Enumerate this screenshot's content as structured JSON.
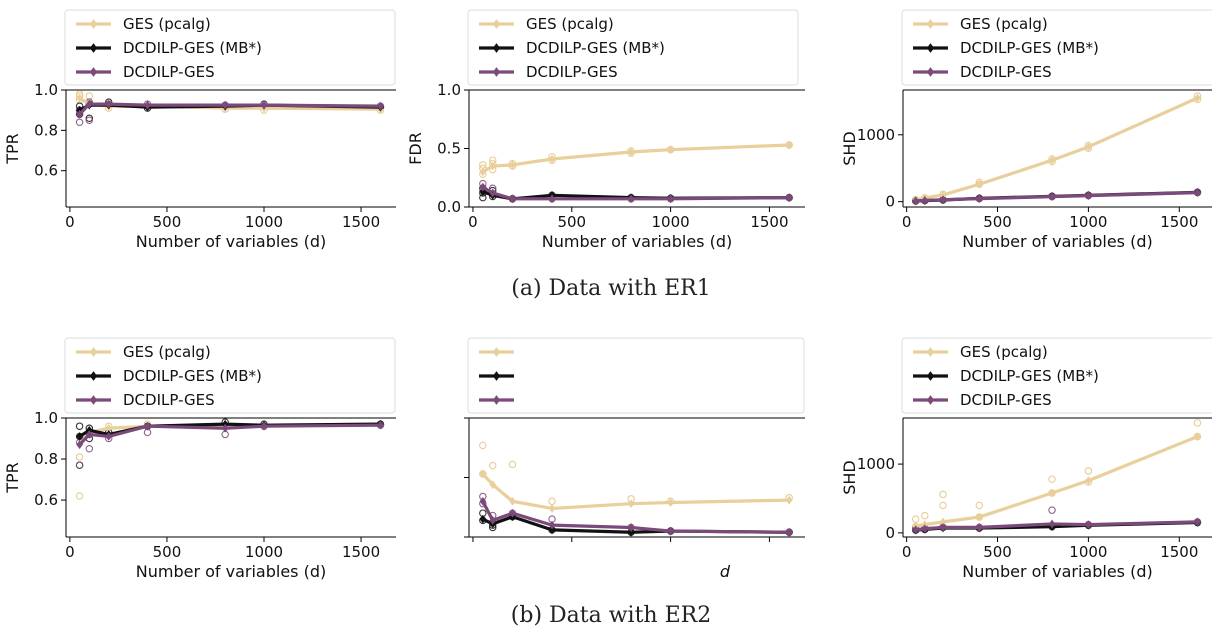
{
  "figure": {
    "colors": {
      "GES (pcalg)": "#e8cf9b",
      "DCDILP-GES (MB*)": "#111111",
      "DCDILP-GES": "#7b4a7a"
    },
    "rows": [
      {
        "caption": "(a) Data with ER1"
      },
      {
        "caption": "(b) Data with ER2"
      }
    ]
  },
  "chart_data": [
    {
      "type": "line",
      "id": "er1-tpr",
      "xlabel": "Number of variables (d)",
      "ylabel": "TPR",
      "xlim": [
        -20,
        1680
      ],
      "ylim": [
        0.42,
        1.0
      ],
      "xticks": [
        0,
        500,
        1000,
        1500
      ],
      "yticks": [
        0.6,
        0.8,
        1.0
      ],
      "x": [
        50,
        100,
        200,
        400,
        800,
        1000,
        1600
      ],
      "series": [
        {
          "name": "GES (pcalg)",
          "values": [
            0.96,
            0.93,
            0.92,
            0.92,
            0.91,
            0.91,
            0.905
          ],
          "scatter": [
            [
              50,
              0.98
            ],
            [
              50,
              0.97
            ],
            [
              50,
              0.95
            ],
            [
              100,
              0.97
            ],
            [
              100,
              0.94
            ],
            [
              200,
              0.93
            ],
            [
              200,
              0.91
            ],
            [
              400,
              0.92
            ],
            [
              800,
              0.905
            ],
            [
              1000,
              0.9
            ],
            [
              1600,
              0.9
            ]
          ]
        },
        {
          "name": "DCDILP-GES (MB*)",
          "values": [
            0.9,
            0.925,
            0.925,
            0.915,
            0.92,
            0.925,
            0.915
          ],
          "scatter": [
            [
              50,
              0.92
            ],
            [
              50,
              0.9
            ],
            [
              50,
              0.88
            ],
            [
              100,
              0.93
            ],
            [
              100,
              0.86
            ],
            [
              200,
              0.94
            ],
            [
              400,
              0.91
            ],
            [
              800,
              0.92
            ],
            [
              1000,
              0.93
            ],
            [
              1600,
              0.915
            ]
          ]
        },
        {
          "name": "DCDILP-GES",
          "values": [
            0.88,
            0.93,
            0.93,
            0.925,
            0.925,
            0.925,
            0.92
          ],
          "scatter": [
            [
              50,
              0.9
            ],
            [
              50,
              0.84
            ],
            [
              100,
              0.94
            ],
            [
              100,
              0.85
            ],
            [
              200,
              0.93
            ],
            [
              400,
              0.93
            ],
            [
              800,
              0.925
            ],
            [
              1000,
              0.93
            ],
            [
              1600,
              0.92
            ]
          ]
        }
      ],
      "legend": [
        "GES (pcalg)",
        "DCDILP-GES (MB*)",
        "DCDILP-GES"
      ]
    },
    {
      "type": "line",
      "id": "er1-fdr",
      "xlabel": "Number of variables (d)",
      "ylabel": "FDR",
      "xlim": [
        -20,
        1680
      ],
      "ylim": [
        0.0,
        1.0
      ],
      "xticks": [
        0,
        500,
        1000,
        1500
      ],
      "yticks": [
        0.0,
        0.5,
        1.0
      ],
      "x": [
        50,
        100,
        200,
        400,
        800,
        1000,
        1600
      ],
      "series": [
        {
          "name": "GES (pcalg)",
          "values": [
            0.3,
            0.35,
            0.36,
            0.41,
            0.47,
            0.49,
            0.53
          ],
          "scatter": [
            [
              50,
              0.36
            ],
            [
              50,
              0.33
            ],
            [
              50,
              0.28
            ],
            [
              100,
              0.4
            ],
            [
              100,
              0.37
            ],
            [
              100,
              0.32
            ],
            [
              200,
              0.37
            ],
            [
              200,
              0.35
            ],
            [
              400,
              0.43
            ],
            [
              400,
              0.4
            ],
            [
              800,
              0.48
            ],
            [
              800,
              0.46
            ],
            [
              1000,
              0.49
            ],
            [
              1600,
              0.53
            ]
          ]
        },
        {
          "name": "DCDILP-GES (MB*)",
          "values": [
            0.13,
            0.1,
            0.07,
            0.1,
            0.08,
            0.075,
            0.08
          ],
          "scatter": [
            [
              50,
              0.16
            ],
            [
              50,
              0.12
            ],
            [
              50,
              0.08
            ],
            [
              100,
              0.14
            ],
            [
              100,
              0.09
            ],
            [
              200,
              0.07
            ],
            [
              400,
              0.1
            ],
            [
              800,
              0.08
            ],
            [
              1000,
              0.075
            ],
            [
              1600,
              0.08
            ]
          ]
        },
        {
          "name": "DCDILP-GES",
          "values": [
            0.17,
            0.12,
            0.07,
            0.07,
            0.07,
            0.07,
            0.08
          ],
          "scatter": [
            [
              50,
              0.2
            ],
            [
              50,
              0.14
            ],
            [
              100,
              0.16
            ],
            [
              100,
              0.11
            ],
            [
              200,
              0.07
            ],
            [
              400,
              0.07
            ],
            [
              800,
              0.07
            ],
            [
              1000,
              0.07
            ],
            [
              1600,
              0.08
            ]
          ]
        }
      ],
      "legend": [
        "GES (pcalg)",
        "DCDILP-GES (MB*)",
        "DCDILP-GES"
      ]
    },
    {
      "type": "line",
      "id": "er1-shd",
      "xlabel": "Number of variables (d)",
      "ylabel": "SHD",
      "xlim": [
        -20,
        1680
      ],
      "ylim": [
        -80,
        1670
      ],
      "xticks": [
        0,
        500,
        1000,
        1500
      ],
      "yticks": [
        0,
        1000
      ],
      "x": [
        50,
        100,
        200,
        400,
        800,
        1000,
        1600
      ],
      "series": [
        {
          "name": "GES (pcalg)",
          "values": [
            30,
            55,
            100,
            260,
            620,
            820,
            1550
          ],
          "scatter": [
            [
              50,
              30
            ],
            [
              100,
              55
            ],
            [
              200,
              110
            ],
            [
              400,
              260
            ],
            [
              400,
              290
            ],
            [
              800,
              600
            ],
            [
              800,
              640
            ],
            [
              1000,
              800
            ],
            [
              1000,
              840
            ],
            [
              1600,
              1530
            ],
            [
              1600,
              1580
            ]
          ]
        },
        {
          "name": "DCDILP-GES (MB*)",
          "values": [
            10,
            15,
            25,
            50,
            80,
            95,
            140
          ],
          "scatter": [
            [
              50,
              10
            ],
            [
              100,
              15
            ],
            [
              200,
              25
            ],
            [
              400,
              50
            ],
            [
              800,
              80
            ],
            [
              1000,
              95
            ],
            [
              1600,
              140
            ]
          ]
        },
        {
          "name": "DCDILP-GES",
          "values": [
            10,
            18,
            28,
            45,
            75,
            90,
            135
          ],
          "scatter": [
            [
              50,
              12
            ],
            [
              100,
              18
            ],
            [
              200,
              28
            ],
            [
              400,
              45
            ],
            [
              800,
              75
            ],
            [
              1000,
              90
            ],
            [
              1600,
              135
            ]
          ]
        }
      ],
      "legend": [
        "GES (pcalg)",
        "DCDILP-GES (MB*)",
        "DCDILP-GES"
      ]
    },
    {
      "type": "line",
      "id": "er2-tpr",
      "xlabel": "Number of variables (d)",
      "ylabel": "TPR",
      "xlim": [
        -20,
        1680
      ],
      "ylim": [
        0.42,
        1.0
      ],
      "xticks": [
        0,
        500,
        1000,
        1500
      ],
      "yticks": [
        0.6,
        0.8,
        1.0
      ],
      "x": [
        50,
        100,
        200,
        400,
        800,
        1000,
        1600
      ],
      "series": [
        {
          "name": "GES (pcalg)",
          "values": [
            0.87,
            0.93,
            0.95,
            0.96,
            0.96,
            0.965,
            0.97
          ],
          "scatter": [
            [
              50,
              0.81
            ],
            [
              50,
              0.62
            ],
            [
              100,
              0.95
            ],
            [
              200,
              0.96
            ],
            [
              400,
              0.97
            ],
            [
              800,
              0.96
            ],
            [
              1000,
              0.96
            ],
            [
              1600,
              0.97
            ]
          ]
        },
        {
          "name": "DCDILP-GES (MB*)",
          "values": [
            0.91,
            0.94,
            0.92,
            0.96,
            0.97,
            0.965,
            0.97
          ],
          "scatter": [
            [
              50,
              0.96
            ],
            [
              50,
              0.91
            ],
            [
              50,
              0.77
            ],
            [
              100,
              0.95
            ],
            [
              100,
              0.9
            ],
            [
              200,
              0.93
            ],
            [
              400,
              0.96
            ],
            [
              800,
              0.98
            ],
            [
              1000,
              0.97
            ],
            [
              1600,
              0.97
            ]
          ]
        },
        {
          "name": "DCDILP-GES",
          "values": [
            0.87,
            0.92,
            0.91,
            0.96,
            0.95,
            0.96,
            0.965
          ],
          "scatter": [
            [
              50,
              0.88
            ],
            [
              50,
              0.77
            ],
            [
              100,
              0.92
            ],
            [
              100,
              0.85
            ],
            [
              200,
              0.9
            ],
            [
              400,
              0.93
            ],
            [
              800,
              0.92
            ],
            [
              1000,
              0.96
            ],
            [
              1600,
              0.965
            ]
          ]
        }
      ],
      "legend": [
        "GES (pcalg)",
        "DCDILP-GES (MB*)",
        "DCDILP-GES"
      ]
    },
    {
      "type": "line",
      "id": "er2-fdr",
      "xlabel": "d",
      "ylabel": "",
      "xlim": [
        -20,
        1680
      ],
      "ylim": [
        0.0,
        1.0
      ],
      "xticks": [],
      "yticks": [],
      "x": [
        50,
        100,
        200,
        400,
        800,
        1000,
        1600
      ],
      "series": [
        {
          "name": "GES (pcalg)",
          "values": [
            0.53,
            0.44,
            0.3,
            0.24,
            0.28,
            0.29,
            0.31
          ],
          "scatter": [
            [
              50,
              0.77
            ],
            [
              50,
              0.53
            ],
            [
              100,
              0.6
            ],
            [
              200,
              0.61
            ],
            [
              400,
              0.3
            ],
            [
              800,
              0.32
            ],
            [
              1000,
              0.3
            ],
            [
              1600,
              0.33
            ]
          ]
        },
        {
          "name": "DCDILP-GES (MB*)",
          "values": [
            0.15,
            0.11,
            0.17,
            0.06,
            0.04,
            0.05,
            0.04
          ],
          "scatter": [
            [
              50,
              0.2
            ],
            [
              50,
              0.14
            ],
            [
              100,
              0.1
            ],
            [
              100,
              0.08
            ],
            [
              200,
              0.17
            ],
            [
              400,
              0.06
            ],
            [
              800,
              0.04
            ],
            [
              1000,
              0.05
            ],
            [
              1600,
              0.04
            ]
          ]
        },
        {
          "name": "DCDILP-GES",
          "values": [
            0.3,
            0.14,
            0.2,
            0.1,
            0.08,
            0.05,
            0.04
          ],
          "scatter": [
            [
              50,
              0.34
            ],
            [
              50,
              0.28
            ],
            [
              100,
              0.18
            ],
            [
              200,
              0.2
            ],
            [
              400,
              0.15
            ],
            [
              800,
              0.08
            ],
            [
              1000,
              0.05
            ],
            [
              1600,
              0.04
            ]
          ]
        }
      ],
      "legend": [
        "",
        "",
        ""
      ]
    },
    {
      "type": "line",
      "id": "er2-shd",
      "xlabel": "Number of variables (d)",
      "ylabel": "SHD",
      "xlim": [
        -20,
        1680
      ],
      "ylim": [
        -60,
        1670
      ],
      "xticks": [
        0,
        500,
        1000,
        1500
      ],
      "yticks": [
        0,
        1000
      ],
      "x": [
        50,
        100,
        200,
        400,
        800,
        1000,
        1600
      ],
      "series": [
        {
          "name": "GES (pcalg)",
          "values": [
            100,
            120,
            160,
            230,
            580,
            760,
            1400
          ],
          "scatter": [
            [
              50,
              200
            ],
            [
              50,
              90
            ],
            [
              100,
              250
            ],
            [
              200,
              560
            ],
            [
              200,
              400
            ],
            [
              400,
              400
            ],
            [
              400,
              230
            ],
            [
              800,
              780
            ],
            [
              800,
              580
            ],
            [
              1000,
              900
            ],
            [
              1000,
              740
            ],
            [
              1600,
              1600
            ],
            [
              1600,
              1400
            ]
          ]
        },
        {
          "name": "DCDILP-GES (MB*)",
          "values": [
            40,
            50,
            70,
            70,
            90,
            110,
            150
          ],
          "scatter": [
            [
              50,
              40
            ],
            [
              100,
              50
            ],
            [
              200,
              80
            ],
            [
              400,
              70
            ],
            [
              800,
              90
            ],
            [
              1000,
              110
            ],
            [
              1600,
              150
            ]
          ]
        },
        {
          "name": "DCDILP-GES",
          "values": [
            45,
            60,
            80,
            80,
            130,
            120,
            160
          ],
          "scatter": [
            [
              50,
              60
            ],
            [
              100,
              70
            ],
            [
              200,
              80
            ],
            [
              400,
              80
            ],
            [
              800,
              330
            ],
            [
              1000,
              120
            ],
            [
              1600,
              160
            ]
          ]
        }
      ],
      "legend": [
        "GES (pcalg)",
        "DCDILP-GES (MB*)",
        "DCDILP-GES"
      ]
    }
  ]
}
